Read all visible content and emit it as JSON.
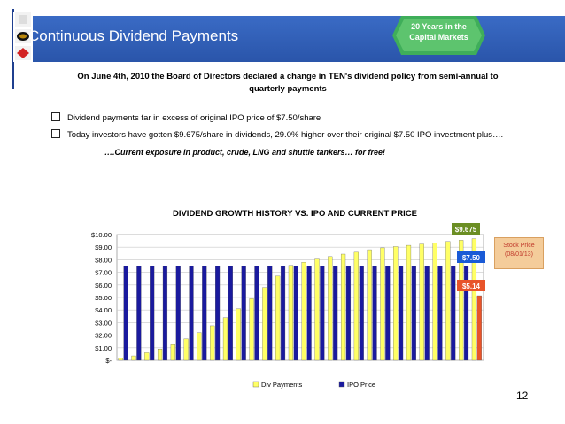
{
  "header": {
    "title": "Continuous Dividend Payments",
    "badge_line1": "20 Years in the",
    "badge_line2": "Capital Markets"
  },
  "announcement": {
    "line1": "On June 4th, 2010 the Board of Directors declared a change in TEN's dividend policy from semi-annual    to",
    "line2": "quarterly payments"
  },
  "bullets": [
    "Dividend payments far in excess of original IPO price of $7.50/share",
    "Today investors have gotten $9.675/share in dividends, 29.0% higher over their original $7.50 IPO investment plus…."
  ],
  "tagline": "….Current exposure in product, crude, LNG and shuttle tankers… for free!",
  "page_number": "12",
  "stock_note": {
    "line1": "Stock Price",
    "line2": "(08/01/13)"
  },
  "chart_data": {
    "type": "bar",
    "title": "DIVIDEND GROWTH HISTORY  VS. IPO AND CURRENT PRICE",
    "ylim": [
      0,
      10
    ],
    "y_ticks": [
      "$-",
      "$1.00",
      "$2.00",
      "$3.00",
      "$4.00",
      "$5.00",
      "$6.00",
      "$7.00",
      "$8.00",
      "$9.00",
      "$10.00"
    ],
    "grid": true,
    "legend_position": "bottom",
    "series": [
      {
        "name": "Div Payments",
        "color": "#ffff66",
        "values": [
          0.15,
          0.35,
          0.6,
          0.9,
          1.25,
          1.7,
          2.2,
          2.75,
          3.4,
          4.1,
          4.9,
          5.8,
          6.7,
          7.55,
          7.8,
          8.05,
          8.25,
          8.45,
          8.6,
          8.8,
          8.95,
          9.05,
          9.15,
          9.25,
          9.35,
          9.45,
          9.55,
          9.675
        ]
      },
      {
        "name": "IPO Price",
        "color": "#1a1a9e",
        "values": [
          7.5,
          7.5,
          7.5,
          7.5,
          7.5,
          7.5,
          7.5,
          7.5,
          7.5,
          7.5,
          7.5,
          7.5,
          7.5,
          7.5,
          7.5,
          7.5,
          7.5,
          7.5,
          7.5,
          7.5,
          7.5,
          7.5,
          7.5,
          7.5,
          7.5,
          7.5,
          7.5,
          7.5
        ]
      }
    ],
    "current_price": {
      "value": 5.14,
      "label": "$5.14",
      "color": "#e8542a"
    },
    "annotations": [
      {
        "label": "$9.675",
        "value": 9.675,
        "color": "#6b8e23"
      },
      {
        "label": "$7.50",
        "value": 7.5,
        "color": "#1a5bd6"
      },
      {
        "label": "$5.14",
        "value": 5.14,
        "color": "#e8542a"
      }
    ]
  }
}
